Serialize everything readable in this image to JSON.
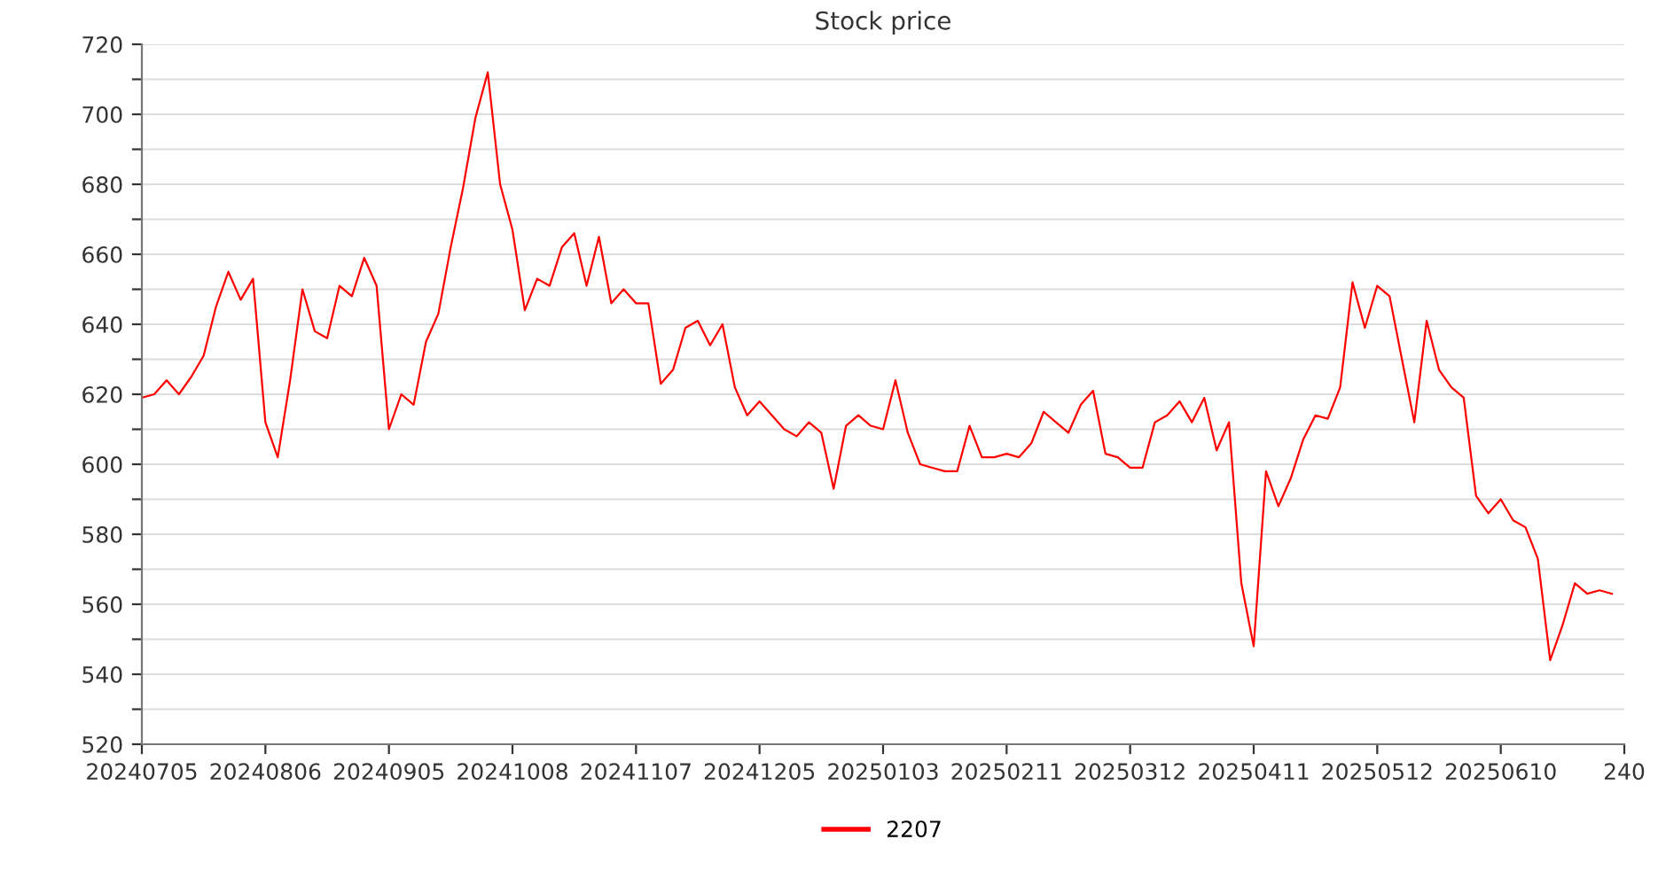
{
  "chart_data": {
    "type": "line",
    "title": "Stock price",
    "categories": [
      "20240705",
      null,
      null,
      null,
      null,
      null,
      null,
      null,
      null,
      null,
      "20240806",
      null,
      null,
      null,
      null,
      null,
      null,
      null,
      null,
      null,
      "20240905",
      null,
      null,
      null,
      null,
      null,
      null,
      null,
      null,
      null,
      "20241008",
      null,
      null,
      null,
      null,
      null,
      null,
      null,
      null,
      null,
      "20241107",
      null,
      null,
      null,
      null,
      null,
      null,
      null,
      null,
      null,
      "20241205",
      null,
      null,
      null,
      null,
      null,
      null,
      null,
      null,
      null,
      "20250103",
      null,
      null,
      null,
      null,
      null,
      null,
      null,
      null,
      null,
      "20250211",
      null,
      null,
      null,
      null,
      null,
      null,
      null,
      null,
      null,
      "20250312",
      null,
      null,
      null,
      null,
      null,
      null,
      null,
      null,
      null,
      "20250411",
      null,
      null,
      null,
      null,
      null,
      null,
      null,
      null,
      null,
      "20250512",
      null,
      null,
      null,
      null,
      null,
      null,
      null,
      null,
      null,
      "20250610",
      null,
      null,
      null,
      null,
      null,
      null,
      null,
      null,
      null,
      "240"
    ],
    "series": [
      {
        "name": "2207",
        "color": "#ff0000",
        "values": [
          619,
          620,
          624,
          620,
          625,
          631,
          645,
          655,
          647,
          653,
          612,
          602,
          624,
          650,
          638,
          636,
          651,
          648,
          659,
          651,
          610,
          620,
          617,
          635,
          643,
          662,
          679,
          699,
          712,
          680,
          667,
          644,
          653,
          651,
          662,
          666,
          651,
          665,
          646,
          650,
          646,
          646,
          623,
          627,
          639,
          641,
          634,
          640,
          622,
          614,
          618,
          614,
          610,
          608,
          612,
          609,
          593,
          611,
          614,
          611,
          610,
          624,
          609,
          600,
          599,
          598,
          598,
          611,
          602,
          602,
          603,
          602,
          606,
          615,
          612,
          609,
          617,
          621,
          603,
          602,
          599,
          599,
          612,
          614,
          618,
          612,
          619,
          604,
          612,
          566,
          548,
          598,
          588,
          596,
          607,
          614,
          613,
          622,
          652,
          639,
          651,
          648,
          630,
          612,
          641,
          627,
          622,
          619,
          591,
          586,
          590,
          584,
          582,
          573,
          544,
          554,
          566,
          563,
          564,
          563,
          null
        ]
      }
    ],
    "ylim": [
      520,
      720
    ],
    "yticks": [
      520,
      {
        "value": 530,
        "label": null
      },
      540,
      {
        "value": 550,
        "label": null
      },
      560,
      {
        "value": 570,
        "label": null
      },
      580,
      {
        "value": 590,
        "label": null
      },
      600,
      {
        "value": 610,
        "label": null
      },
      620,
      {
        "value": 630,
        "label": null
      },
      640,
      {
        "value": 650,
        "label": null
      },
      660,
      {
        "value": 670,
        "label": null
      },
      680,
      {
        "value": 690,
        "label": null
      },
      700,
      {
        "value": 710,
        "label": null
      },
      720
    ],
    "grid": "y",
    "legend": "bottom",
    "marker": "none",
    "line_style": "solid"
  }
}
